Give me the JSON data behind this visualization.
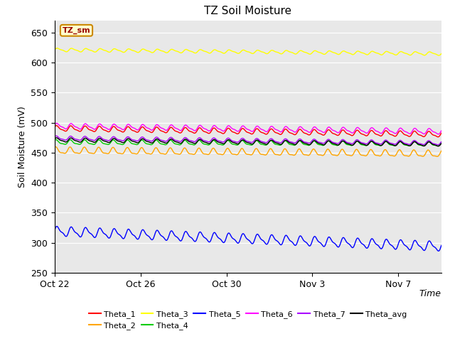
{
  "title": "TZ Soil Moisture",
  "ylabel": "Soil Moisture (mV)",
  "xlabel": "Time",
  "legend_label": "TZ_sm",
  "ylim": [
    250,
    670
  ],
  "yticks": [
    250,
    300,
    350,
    400,
    450,
    500,
    550,
    600,
    650
  ],
  "bg_color": "#e8e8e8",
  "series": [
    {
      "name": "Theta_1",
      "color": "#ff0000",
      "base": 490,
      "amplitude": 4,
      "trend": -0.55,
      "phase": 0.5
    },
    {
      "name": "Theta_2",
      "color": "#ffa500",
      "base": 453,
      "amplitude": 5,
      "trend": -0.3,
      "phase": 1.0
    },
    {
      "name": "Theta_3",
      "color": "#ffff00",
      "base": 621,
      "amplitude": 2.5,
      "trend": -0.35,
      "phase": 0.0
    },
    {
      "name": "Theta_4",
      "color": "#00cc00",
      "base": 467,
      "amplitude": 3.5,
      "trend": -0.15,
      "phase": 0.8
    },
    {
      "name": "Theta_5",
      "color": "#0000ff",
      "base": 319,
      "amplitude": 7,
      "trend": -1.4,
      "phase": 0.2
    },
    {
      "name": "Theta_6",
      "color": "#ff00ff",
      "base": 494,
      "amplitude": 4,
      "trend": -0.5,
      "phase": 0.3
    },
    {
      "name": "Theta_7",
      "color": "#aa00ff",
      "base": 474,
      "amplitude": 3,
      "trend": -0.45,
      "phase": 0.6
    },
    {
      "name": "Theta_avg",
      "color": "#000000",
      "base": 471,
      "amplitude": 3,
      "trend": -0.4,
      "phase": 0.4
    }
  ],
  "total_days": 18,
  "n_points": 600,
  "cycles_per_day": 1.5,
  "xtick_dates": [
    "Oct 22",
    "Oct 26",
    "Oct 30",
    "Nov 3",
    "Nov 7"
  ],
  "xtick_days": [
    0,
    4,
    8,
    12,
    16
  ],
  "legend_ncol": 6,
  "legend_order": [
    "Theta_1",
    "Theta_2",
    "Theta_3",
    "Theta_4",
    "Theta_5",
    "Theta_6",
    "Theta_7",
    "Theta_avg"
  ]
}
